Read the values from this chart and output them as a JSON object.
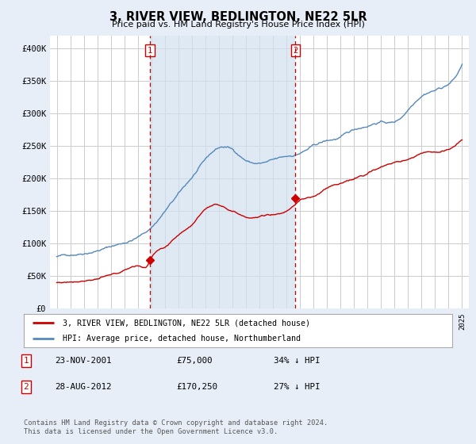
{
  "title": "3, RIVER VIEW, BEDLINGTON, NE22 5LR",
  "subtitle": "Price paid vs. HM Land Registry's House Price Index (HPI)",
  "bg_color": "#e8eef8",
  "plot_bg_color": "#ffffff",
  "fill_color": "#d0e0f0",
  "grid_color": "#cccccc",
  "hpi_color": "#5588bb",
  "price_color": "#cc0000",
  "vline_color": "#cc0000",
  "purchase1_x": 2001.9,
  "purchase1_y": 75000,
  "purchase2_x": 2012.67,
  "purchase2_y": 170250,
  "legend1": "3, RIVER VIEW, BEDLINGTON, NE22 5LR (detached house)",
  "legend2": "HPI: Average price, detached house, Northumberland",
  "table_rows": [
    {
      "num": "1",
      "date": "23-NOV-2001",
      "price": "£75,000",
      "hpi": "34% ↓ HPI"
    },
    {
      "num": "2",
      "date": "28-AUG-2012",
      "price": "£170,250",
      "hpi": "27% ↓ HPI"
    }
  ],
  "footer": "Contains HM Land Registry data © Crown copyright and database right 2024.\nThis data is licensed under the Open Government Licence v3.0.",
  "ylim": [
    0,
    420000
  ],
  "xlim": [
    1994.5,
    2025.5
  ],
  "yticks": [
    0,
    50000,
    100000,
    150000,
    200000,
    250000,
    300000,
    350000,
    400000
  ],
  "ytick_labels": [
    "£0",
    "£50K",
    "£100K",
    "£150K",
    "£200K",
    "£250K",
    "£300K",
    "£350K",
    "£400K"
  ],
  "xticks": [
    1995,
    1996,
    1997,
    1998,
    1999,
    2000,
    2001,
    2002,
    2003,
    2004,
    2005,
    2006,
    2007,
    2008,
    2009,
    2010,
    2011,
    2012,
    2013,
    2014,
    2015,
    2016,
    2017,
    2018,
    2019,
    2020,
    2021,
    2022,
    2023,
    2024,
    2025
  ]
}
